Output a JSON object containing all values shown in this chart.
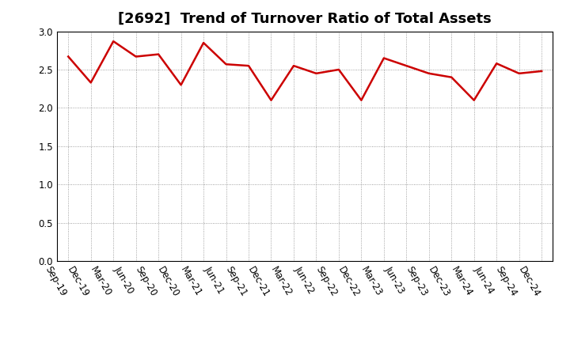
{
  "title": "[2692]  Trend of Turnover Ratio of Total Assets",
  "x_labels": [
    "Sep-19",
    "Dec-19",
    "Mar-20",
    "Jun-20",
    "Sep-20",
    "Dec-20",
    "Mar-21",
    "Jun-21",
    "Sep-21",
    "Dec-21",
    "Mar-22",
    "Jun-22",
    "Sep-22",
    "Dec-22",
    "Mar-23",
    "Jun-23",
    "Sep-23",
    "Dec-23",
    "Mar-24",
    "Jun-24",
    "Sep-24",
    "Dec-24"
  ],
  "values": [
    2.67,
    2.33,
    2.87,
    2.67,
    2.7,
    2.3,
    2.85,
    2.57,
    2.55,
    2.1,
    2.55,
    2.45,
    2.5,
    2.1,
    2.65,
    2.55,
    2.45,
    2.4,
    2.1,
    2.58,
    2.45,
    2.48
  ],
  "line_color": "#cc0000",
  "line_width": 1.8,
  "ylim": [
    0.0,
    3.0
  ],
  "yticks": [
    0.0,
    0.5,
    1.0,
    1.5,
    2.0,
    2.5,
    3.0
  ],
  "grid_color": "#888888",
  "bg_color": "#ffffff",
  "title_fontsize": 13,
  "tick_fontsize": 8.5
}
